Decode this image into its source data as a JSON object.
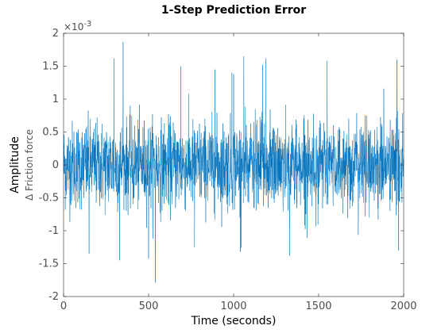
{
  "chart_data": {
    "type": "line",
    "title": "1-Step Prediction Error",
    "xlabel": "Time (seconds)",
    "ylabel": "Amplitude",
    "ylabel_sub": "Δ Friction force",
    "y_exponent_label": "×10",
    "y_exponent_power": "-3",
    "xlim": [
      0,
      2000
    ],
    "ylim": [
      -2,
      2
    ],
    "x_ticks": [
      0,
      500,
      1000,
      1500,
      2000
    ],
    "y_ticks": [
      -2,
      -1.5,
      -1,
      -0.5,
      0,
      0.5,
      1,
      1.5,
      2
    ],
    "x_tick_labels": [
      "0",
      "500",
      "1000",
      "1500",
      "2000"
    ],
    "y_tick_labels": [
      "-2",
      "-1.5",
      "-1",
      "-0.5",
      "0",
      "0.5",
      "1",
      "1.5",
      "2"
    ],
    "grid": false,
    "box": true,
    "series": [
      {
        "color": "#0072BD",
        "x_start": 0,
        "x_step": 1,
        "n_points": 2001,
        "std": 0.33,
        "notable_points": [
          {
            "x": 350,
            "y": 1.87
          },
          {
            "x": 540,
            "y": -1.79
          },
          {
            "x": 296,
            "y": 1.62
          },
          {
            "x": 690,
            "y": 1.5
          },
          {
            "x": 1060,
            "y": 1.65
          },
          {
            "x": 1190,
            "y": 1.62
          },
          {
            "x": 1550,
            "y": 1.58
          },
          {
            "x": 890,
            "y": 1.45
          },
          {
            "x": 990,
            "y": 1.4
          },
          {
            "x": 1000,
            "y": 1.38
          },
          {
            "x": 1170,
            "y": 1.52
          },
          {
            "x": 1960,
            "y": 1.6
          },
          {
            "x": 330,
            "y": -1.45
          },
          {
            "x": 1330,
            "y": -1.38
          },
          {
            "x": 150,
            "y": -1.35
          },
          {
            "x": 500,
            "y": -1.42
          },
          {
            "x": 1970,
            "y": -1.3
          },
          {
            "x": 1040,
            "y": -1.32
          },
          {
            "x": 770,
            "y": -1.25
          }
        ]
      }
    ]
  }
}
